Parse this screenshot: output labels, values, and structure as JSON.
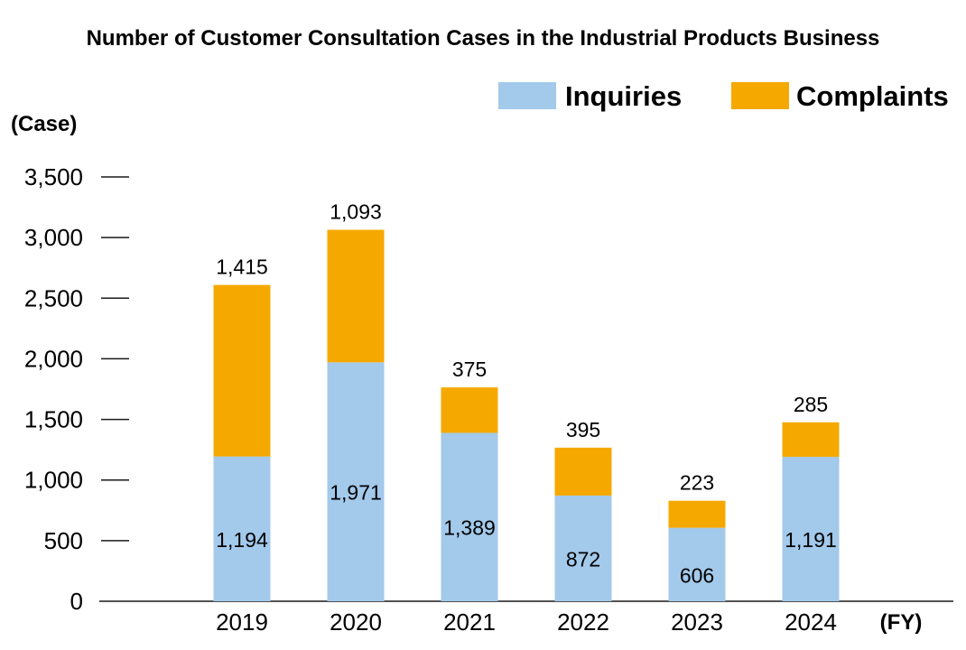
{
  "chart_data": {
    "type": "bar",
    "stacked": true,
    "title": "Number of Customer Consultation Cases in the Industrial Products Business",
    "ylabel": "(Case)",
    "xlabel": "(FY)",
    "ylim": [
      0,
      3500
    ],
    "yticks": [
      0,
      500,
      1000,
      1500,
      2000,
      2500,
      3000,
      3500
    ],
    "ytick_labels": [
      "0",
      "500",
      "1,000",
      "1,500",
      "2,000",
      "2,500",
      "3,000",
      "3,500"
    ],
    "categories": [
      "2019",
      "2020",
      "2021",
      "2022",
      "2023",
      "2024"
    ],
    "series": [
      {
        "name": "Inquiries",
        "color": "#a3c9eb",
        "values": [
          1194,
          1971,
          1389,
          872,
          606,
          1191
        ],
        "labels": [
          "1,194",
          "1,971",
          "1,389",
          "872",
          "606",
          "1,191"
        ]
      },
      {
        "name": "Complaints",
        "color": "#f5a900",
        "values": [
          1415,
          1093,
          375,
          395,
          223,
          285
        ],
        "labels": [
          "1,415",
          "1,093",
          "375",
          "395",
          "223",
          "285"
        ]
      }
    ],
    "legend": "top-right",
    "grid": false
  }
}
